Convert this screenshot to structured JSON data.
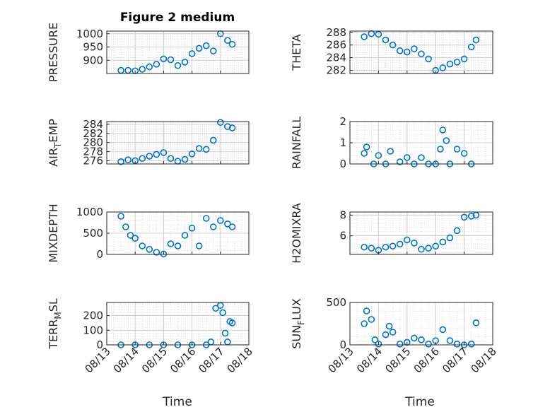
{
  "figure_title": "Figure 2 medium",
  "xlabel": "Time",
  "x_ticks": [
    "08/13",
    "08/14",
    "08/15",
    "08/16",
    "08/17",
    "08/18"
  ],
  "marker_color": "#0072BD",
  "chart_data": [
    {
      "type": "scatter",
      "ylabel": "PRESSURE",
      "yticks": [
        900,
        950,
        1000
      ],
      "ylim": [
        850,
        1010
      ],
      "x": [
        "08/13 12:00",
        "08/13 18:00",
        "08/14 00:00",
        "08/14 06:00",
        "08/14 12:00",
        "08/14 18:00",
        "08/15 00:00",
        "08/15 06:00",
        "08/15 12:00",
        "08/15 18:00",
        "08/16 00:00",
        "08/16 06:00",
        "08/16 12:00",
        "08/16 18:00",
        "08/17 00:00",
        "08/17 06:00",
        "08/17 10:00"
      ],
      "y": [
        862,
        862,
        860,
        866,
        875,
        885,
        905,
        902,
        880,
        893,
        925,
        945,
        955,
        935,
        1000,
        975,
        960
      ]
    },
    {
      "type": "scatter",
      "ylabel": "THETA",
      "yticks": [
        282,
        284,
        286,
        288
      ],
      "ylim": [
        281.5,
        288.2
      ],
      "x": [
        "08/13 12:00",
        "08/13 18:00",
        "08/14 00:00",
        "08/14 06:00",
        "08/14 12:00",
        "08/14 18:00",
        "08/15 00:00",
        "08/15 06:00",
        "08/15 12:00",
        "08/15 18:00",
        "08/16 00:00",
        "08/16 06:00",
        "08/16 12:00",
        "08/16 18:00",
        "08/17 00:00",
        "08/17 06:00",
        "08/17 10:00"
      ],
      "y": [
        287.3,
        287.8,
        287.7,
        286.8,
        286.0,
        285.1,
        284.9,
        285.4,
        284.6,
        283.8,
        282.0,
        282.4,
        283.0,
        283.3,
        283.8,
        285.7,
        286.8
      ]
    },
    {
      "type": "scatter",
      "ylabel": "AIR",
      "ylabel_sub": "T",
      "ylabel_rest": "EMP",
      "yticks": [
        276,
        278,
        280,
        282,
        284
      ],
      "ylim": [
        275.3,
        284.6
      ],
      "x": [
        "08/13 12:00",
        "08/13 18:00",
        "08/14 00:00",
        "08/14 06:00",
        "08/14 12:00",
        "08/14 18:00",
        "08/15 00:00",
        "08/15 06:00",
        "08/15 12:00",
        "08/15 18:00",
        "08/16 00:00",
        "08/16 06:00",
        "08/16 12:00",
        "08/16 18:00",
        "08/17 00:00",
        "08/17 06:00",
        "08/17 10:00"
      ],
      "y": [
        275.8,
        276.2,
        276.0,
        276.5,
        277.0,
        277.4,
        277.8,
        276.5,
        275.9,
        276.3,
        277.5,
        278.7,
        278.5,
        280.5,
        284.4,
        283.5,
        283.2
      ]
    },
    {
      "type": "scatter",
      "ylabel": "RAINFALL",
      "yticks": [
        0,
        1,
        2
      ],
      "ylim": [
        0,
        2
      ],
      "x": [
        "08/13 12:00",
        "08/13 14:00",
        "08/13 20:00",
        "08/14 00:00",
        "08/14 06:00",
        "08/14 10:00",
        "08/14 18:00",
        "08/15 00:00",
        "08/15 06:00",
        "08/15 12:00",
        "08/15 18:00",
        "08/16 00:00",
        "08/16 04:00",
        "08/16 06:00",
        "08/16 09:00",
        "08/16 12:00",
        "08/16 18:00",
        "08/17 00:00",
        "08/17 06:00"
      ],
      "y": [
        0.5,
        0.8,
        0.0,
        0.4,
        0.0,
        0.6,
        0.1,
        0.3,
        0.0,
        0.3,
        0.0,
        0.0,
        0.7,
        1.6,
        1.1,
        0.0,
        0.7,
        0.5,
        0.0
      ]
    },
    {
      "type": "scatter",
      "ylabel": "MIXDEPTH",
      "yticks": [
        0,
        500,
        1000
      ],
      "ylim": [
        0,
        1000
      ],
      "x": [
        "08/13 12:00",
        "08/13 16:00",
        "08/13 20:00",
        "08/14 00:00",
        "08/14 06:00",
        "08/14 12:00",
        "08/14 18:00",
        "08/15 00:00",
        "08/15 06:00",
        "08/15 12:00",
        "08/15 18:00",
        "08/16 00:00",
        "08/16 06:00",
        "08/16 12:00",
        "08/16 18:00",
        "08/17 00:00",
        "08/17 06:00",
        "08/17 10:00"
      ],
      "y": [
        900,
        650,
        450,
        380,
        200,
        120,
        50,
        10,
        250,
        200,
        450,
        620,
        200,
        850,
        650,
        800,
        720,
        650
      ]
    },
    {
      "type": "scatter",
      "ylabel": "H2OMIXRA",
      "yticks": [
        6,
        8
      ],
      "ylim": [
        4.2,
        8.3
      ],
      "x": [
        "08/13 12:00",
        "08/13 18:00",
        "08/14 00:00",
        "08/14 06:00",
        "08/14 12:00",
        "08/14 18:00",
        "08/15 00:00",
        "08/15 06:00",
        "08/15 12:00",
        "08/15 18:00",
        "08/16 00:00",
        "08/16 06:00",
        "08/16 12:00",
        "08/16 18:00",
        "08/17 00:00",
        "08/17 06:00",
        "08/17 10:00"
      ],
      "y": [
        4.9,
        4.8,
        4.6,
        4.9,
        5.0,
        5.2,
        5.6,
        5.3,
        4.7,
        4.8,
        5.0,
        5.4,
        5.8,
        6.5,
        7.8,
        7.9,
        8.0
      ]
    },
    {
      "type": "scatter",
      "ylabel": "TERR",
      "ylabel_sub": "M",
      "ylabel_rest": "SL",
      "yticks": [
        0,
        100,
        200
      ],
      "ylim": [
        0,
        290
      ],
      "x": [
        "08/13 12:00",
        "08/14 00:00",
        "08/14 12:00",
        "08/15 00:00",
        "08/15 12:00",
        "08/16 00:00",
        "08/16 12:00",
        "08/16 16:00",
        "08/16 20:00",
        "08/17 00:00",
        "08/17 02:00",
        "08/17 04:00",
        "08/17 06:00",
        "08/17 08:00",
        "08/17 10:00"
      ],
      "y": [
        0,
        0,
        0,
        0,
        0,
        0,
        0,
        20,
        250,
        270,
        220,
        80,
        20,
        160,
        150
      ]
    },
    {
      "type": "scatter",
      "ylabel": "SUN",
      "ylabel_sub": "F",
      "ylabel_rest": "LUX",
      "yticks": [
        0,
        500
      ],
      "ylim": [
        0,
        500
      ],
      "x": [
        "08/13 12:00",
        "08/13 14:00",
        "08/13 18:00",
        "08/13 21:00",
        "08/14 00:00",
        "08/14 06:00",
        "08/14 09:00",
        "08/14 12:00",
        "08/14 18:00",
        "08/15 00:00",
        "08/15 06:00",
        "08/15 12:00",
        "08/15 18:00",
        "08/16 00:00",
        "08/16 06:00",
        "08/16 12:00",
        "08/16 18:00",
        "08/17 00:00",
        "08/17 06:00",
        "08/17 10:00"
      ],
      "y": [
        250,
        400,
        300,
        60,
        10,
        120,
        220,
        150,
        10,
        30,
        80,
        60,
        10,
        50,
        180,
        50,
        10,
        0,
        10,
        260
      ]
    }
  ]
}
